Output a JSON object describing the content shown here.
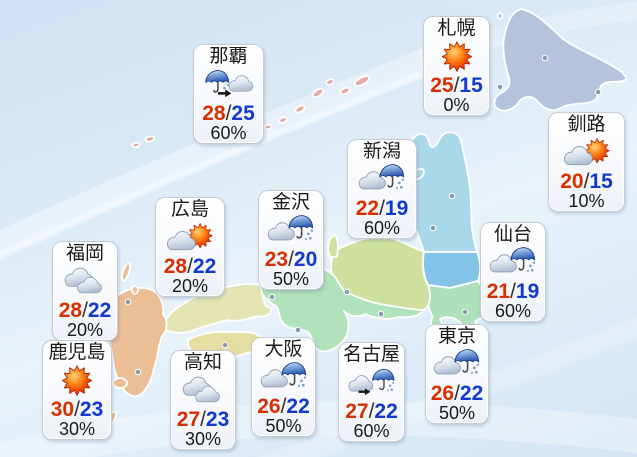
{
  "separator": "/",
  "colors": {
    "high_temp": "#d63000",
    "low_temp": "#1239cc",
    "slash": "#333333",
    "text": "#1a1a1a",
    "card_border": "#c6ccd6",
    "city_dot": "#8b99ac"
  },
  "cities": [
    {
      "id": "sapporo",
      "name": "札幌",
      "icon": "sunny",
      "high": "25",
      "low": "15",
      "pop": "0%"
    },
    {
      "id": "kushiro",
      "name": "釧路",
      "icon": "cloudy-then-sunny",
      "high": "20",
      "low": "15",
      "pop": "10%"
    },
    {
      "id": "naha",
      "name": "那覇",
      "icon": "rain-then-cloudy",
      "high": "28",
      "low": "25",
      "pop": "60%"
    },
    {
      "id": "niigata",
      "name": "新潟",
      "icon": "cloudy-then-rain",
      "high": "22",
      "low": "19",
      "pop": "60%"
    },
    {
      "id": "sendai",
      "name": "仙台",
      "icon": "cloudy-then-rain",
      "high": "21",
      "low": "19",
      "pop": "60%"
    },
    {
      "id": "kanazawa",
      "name": "金沢",
      "icon": "cloudy-then-rain",
      "high": "23",
      "low": "20",
      "pop": "50%"
    },
    {
      "id": "hiroshima",
      "name": "広島",
      "icon": "cloudy-then-sunny",
      "high": "28",
      "low": "22",
      "pop": "20%"
    },
    {
      "id": "fukuoka",
      "name": "福岡",
      "icon": "cloudy",
      "high": "28",
      "low": "22",
      "pop": "20%"
    },
    {
      "id": "kagoshima",
      "name": "鹿児島",
      "icon": "sunny",
      "high": "30",
      "low": "23",
      "pop": "30%"
    },
    {
      "id": "kochi",
      "name": "高知",
      "icon": "cloudy",
      "high": "27",
      "low": "23",
      "pop": "30%"
    },
    {
      "id": "osaka",
      "name": "大阪",
      "icon": "cloudy-then-rain",
      "high": "26",
      "low": "22",
      "pop": "50%"
    },
    {
      "id": "nagoya",
      "name": "名古屋",
      "icon": "cloudy-then-rain-later",
      "high": "27",
      "low": "22",
      "pop": "60%"
    },
    {
      "id": "tokyo",
      "name": "東京",
      "icon": "cloudy-then-rain",
      "high": "26",
      "low": "22",
      "pop": "50%"
    }
  ],
  "map": {
    "region_colors": {
      "hokkaido": "#b5c3dc",
      "tohoku": "#a9d9e9",
      "kanto-north": "#85c4e9",
      "kanto": "#aee0ba",
      "chubu": "#cfe09e",
      "kinki": "#b2e2bc",
      "chugoku": "#e3e5b4",
      "shikoku": "#e6dda0",
      "kyushu": "#ecbe96",
      "ryukyu": "#e4aaa4"
    }
  }
}
